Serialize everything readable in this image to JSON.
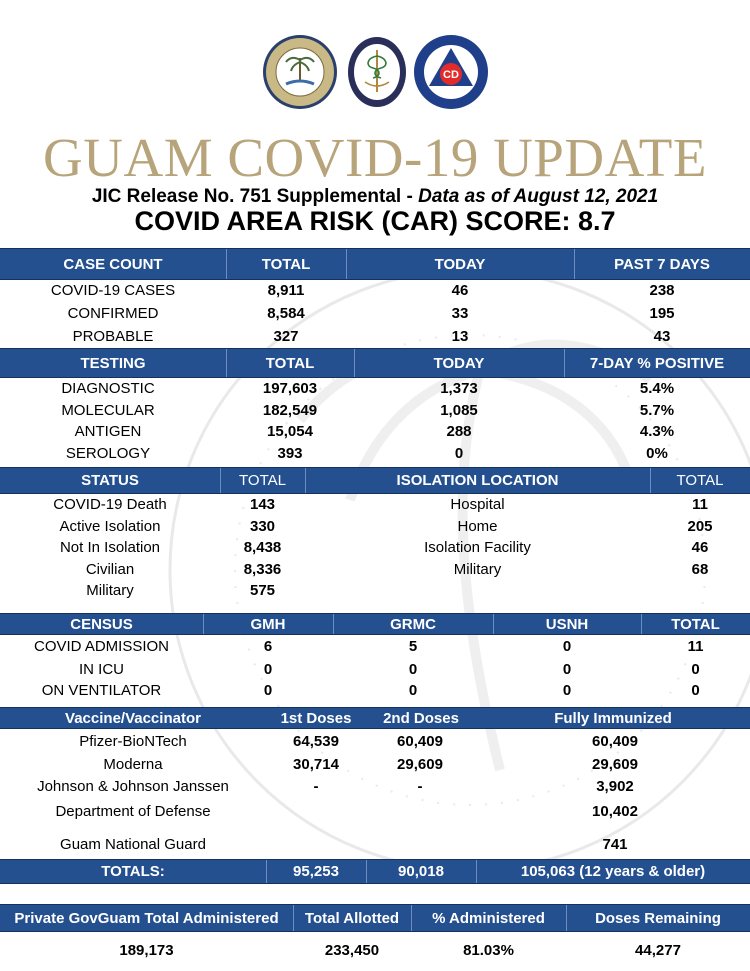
{
  "header": {
    "title": "GUAM COVID-19 UPDATE",
    "release_plain": "JIC Release No. 751 Supplemental - ",
    "release_italic": "Data as of August 12, 2021",
    "car_score": "COVID AREA RISK (CAR) SCORE: 8.7"
  },
  "seals": {
    "governor": "GOVERNOR'S SEAL · GUAM GUAHAN",
    "public_health": "PUBLIC HEALTH · SOCIAL SERVICES",
    "homeland": "GUAM HOMELAND SECURITY · OFFICE OF CIVIL DEFENSE",
    "cd": "CD"
  },
  "case_count": {
    "headers": [
      "CASE COUNT",
      "TOTAL",
      "TODAY",
      "PAST 7 DAYS"
    ],
    "rows": [
      [
        "COVID-19 CASES",
        "8,911",
        "46",
        "238"
      ],
      [
        "CONFIRMED",
        "8,584",
        "33",
        "195"
      ],
      [
        "PROBABLE",
        "327",
        "13",
        "43"
      ]
    ]
  },
  "testing": {
    "headers": [
      "TESTING",
      "TOTAL",
      "TODAY",
      "7-DAY % POSITIVE"
    ],
    "rows": [
      [
        "DIAGNOSTIC",
        "197,603",
        "1,373",
        "5.4%"
      ],
      [
        "MOLECULAR",
        "182,549",
        "1,085",
        "5.7%"
      ],
      [
        "ANTIGEN",
        "15,054",
        "288",
        "4.3%"
      ],
      [
        "SEROLOGY",
        "393",
        "0",
        "0%"
      ]
    ]
  },
  "status": {
    "headers": [
      "STATUS",
      "TOTAL",
      "ISOLATION LOCATION",
      "TOTAL"
    ],
    "rows": [
      [
        "COVID-19 Death",
        "143",
        "Hospital",
        "11"
      ],
      [
        "Active Isolation",
        "330",
        "Home",
        "205"
      ],
      [
        "Not In Isolation",
        "8,438",
        "Isolation Facility",
        "46"
      ],
      [
        "Civilian",
        "8,336",
        "Military",
        "68"
      ],
      [
        "Military",
        "575",
        "",
        ""
      ]
    ]
  },
  "census": {
    "headers": [
      "CENSUS",
      "GMH",
      "GRMC",
      "USNH",
      "TOTAL"
    ],
    "rows": [
      [
        "COVID ADMISSION",
        "6",
        "5",
        "0",
        "11"
      ],
      [
        "IN ICU",
        "0",
        "0",
        "0",
        "0"
      ],
      [
        "ON VENTILATOR",
        "0",
        "0",
        "0",
        "0"
      ]
    ]
  },
  "vaccine": {
    "headers": [
      "Vaccine/Vaccinator",
      "1st Doses",
      "2nd Doses",
      "Fully Immunized"
    ],
    "rows": [
      [
        "Pfizer-BioNTech",
        "64,539",
        "60,409",
        "60,409"
      ],
      [
        "Moderna",
        "30,714",
        "29,609",
        "29,609"
      ],
      [
        "Johnson & Johnson Janssen",
        "-",
        "-",
        "3,902"
      ],
      [
        "Department of Defense",
        "",
        "",
        "10,402"
      ],
      [
        "Guam National Guard",
        "",
        "",
        "741"
      ]
    ],
    "totals": [
      "TOTALS:",
      "95,253",
      "90,018",
      "105,063 (12 years & older)"
    ]
  },
  "govguam": {
    "headers": [
      "Private GovGuam Total Administered",
      "Total Allotted",
      "% Administered",
      "Doses Remaining"
    ],
    "values": [
      "189,173",
      "233,450",
      "81.03%",
      "44,277"
    ]
  }
}
